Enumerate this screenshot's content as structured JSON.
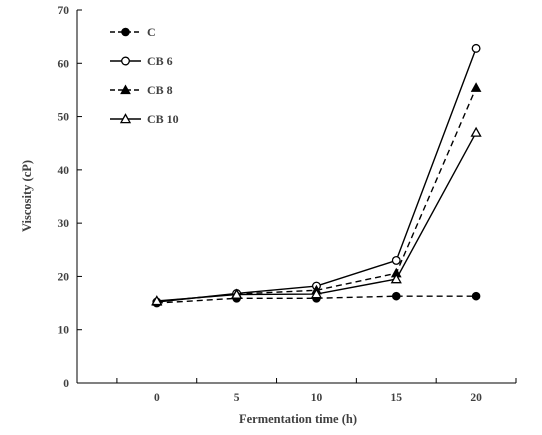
{
  "chart_data": {
    "type": "line",
    "xlabel": "Fermentation  time (h)",
    "ylabel": "Viscosity (cP)",
    "x": [
      0,
      5,
      10,
      15,
      20
    ],
    "xticks": [
      0,
      5,
      10,
      15,
      20
    ],
    "xlim": [
      -5,
      22.5
    ],
    "yticks": [
      0,
      10,
      20,
      30,
      40,
      50,
      60,
      70
    ],
    "ylim": [
      0,
      70
    ],
    "grid": false,
    "legend_position": "top-left",
    "series": [
      {
        "name": "C",
        "marker": "filled-circle",
        "line": "dashed",
        "values": [
          15.0,
          15.9,
          15.9,
          16.3,
          16.3
        ]
      },
      {
        "name": "CB 6",
        "marker": "open-circle",
        "line": "solid",
        "values": [
          15.2,
          16.8,
          18.2,
          23.0,
          62.8
        ]
      },
      {
        "name": "CB 8",
        "marker": "filled-triangle",
        "line": "dashed",
        "values": [
          15.3,
          16.7,
          17.4,
          20.6,
          55.4
        ]
      },
      {
        "name": "CB 10",
        "marker": "open-triangle",
        "line": "solid",
        "values": [
          15.4,
          16.6,
          16.7,
          19.5,
          47.0
        ]
      }
    ],
    "colors": {
      "line": "#000000",
      "axis": "#000000",
      "text": "#404040"
    }
  }
}
